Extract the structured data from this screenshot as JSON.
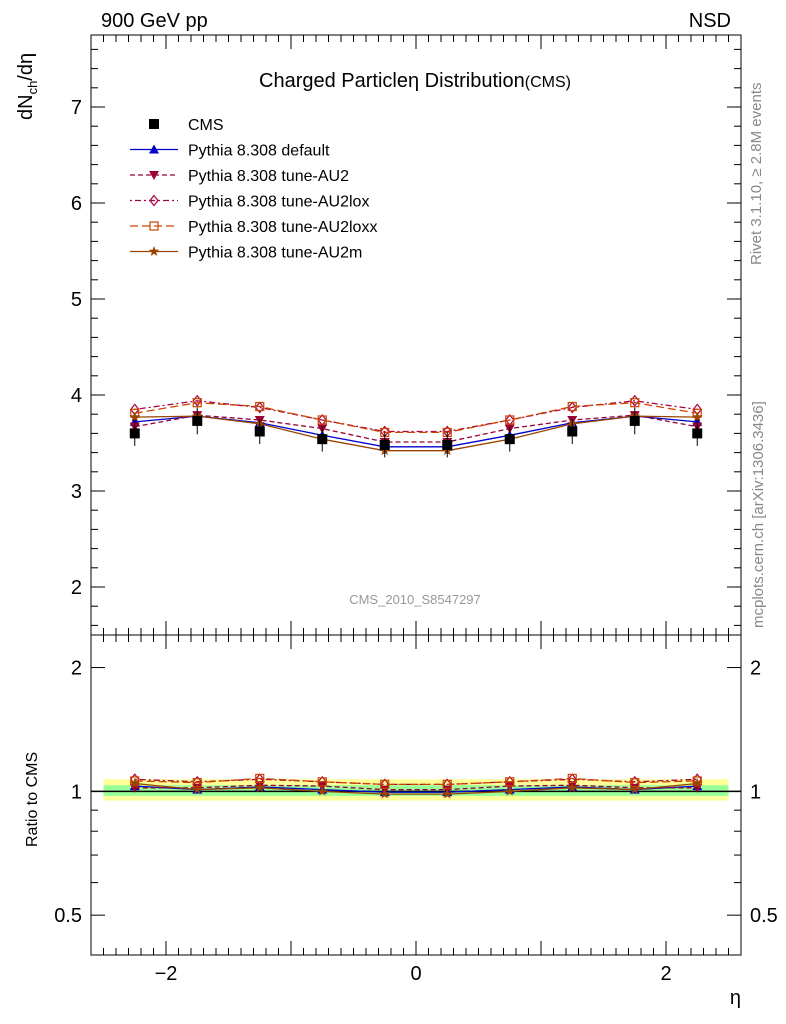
{
  "header": {
    "left": "900 GeV pp",
    "right": "NSD"
  },
  "title": {
    "main": "Charged Particle",
    "greek": "η",
    "rest": " Distribution",
    "suffix": "(CMS)"
  },
  "ylabel_top": "dN_ch/dη",
  "ylabel_bottom": "Ratio to CMS",
  "xlabel": "η",
  "side_text_top": "Rivet 3.1.10, ≥ 2.8M events",
  "side_text_bottom": "mcplots.cern.ch [arXiv:1306.3436]",
  "watermark": "CMS_2010_S8547297",
  "chart_data": {
    "type": "line",
    "x": [
      -2.25,
      -1.75,
      -1.25,
      -0.75,
      -0.25,
      0.25,
      0.75,
      1.25,
      1.75,
      2.25
    ],
    "xlim": [
      -2.6,
      2.6
    ],
    "xticks": [
      -2,
      0,
      2
    ],
    "xtick_labels": [
      "−2",
      "0",
      "2"
    ],
    "main_panel": {
      "ylim": [
        1.5,
        7.75
      ],
      "yticks": [
        2,
        3,
        4,
        5,
        6,
        7
      ],
      "ytick_labels": [
        "2",
        "3",
        "4",
        "5",
        "6",
        "7"
      ]
    },
    "ratio_panel": {
      "scale": "log",
      "ylim": [
        0.4,
        2.4
      ],
      "yticks": [
        0.5,
        1,
        2
      ],
      "ytick_labels": [
        "0.5",
        "1",
        "2"
      ],
      "band_yellow": [
        0.95,
        1.07
      ],
      "band_green": [
        0.975,
        1.035
      ]
    },
    "series": [
      {
        "name": "CMS",
        "color": "#000000",
        "marker": "square",
        "dash": "",
        "values": [
          3.6,
          3.73,
          3.62,
          3.54,
          3.48,
          3.48,
          3.54,
          3.62,
          3.73,
          3.6
        ],
        "errors": [
          0.13,
          0.14,
          0.13,
          0.13,
          0.13,
          0.13,
          0.13,
          0.13,
          0.14,
          0.13
        ]
      },
      {
        "name": "Pythia 8.308 default",
        "color": "#0000cc",
        "marker": "triangle-up",
        "dash": "",
        "values": [
          3.72,
          3.78,
          3.71,
          3.58,
          3.46,
          3.46,
          3.58,
          3.71,
          3.78,
          3.72
        ],
        "ratio": [
          1.03,
          1.01,
          1.025,
          1.01,
          0.995,
          0.995,
          1.01,
          1.025,
          1.01,
          1.03
        ]
      },
      {
        "name": "Pythia 8.308 tune-AU2",
        "color": "#990033",
        "marker": "triangle-down",
        "dash": "5,3",
        "values": [
          3.67,
          3.79,
          3.74,
          3.65,
          3.51,
          3.51,
          3.65,
          3.74,
          3.79,
          3.67
        ],
        "ratio": [
          1.02,
          1.02,
          1.035,
          1.03,
          1.01,
          1.01,
          1.03,
          1.035,
          1.02,
          1.02
        ]
      },
      {
        "name": "Pythia 8.308 tune-AU2lox",
        "color": "#aa0044",
        "marker": "diamond-open",
        "dash": "2,3,6,3",
        "values": [
          3.85,
          3.94,
          3.87,
          3.74,
          3.62,
          3.62,
          3.74,
          3.87,
          3.94,
          3.85
        ],
        "ratio": [
          1.07,
          1.055,
          1.07,
          1.055,
          1.04,
          1.04,
          1.055,
          1.07,
          1.055,
          1.07
        ]
      },
      {
        "name": "Pythia 8.308 tune-AU2loxx",
        "color": "#cc4400",
        "marker": "square-open",
        "dash": "8,4",
        "values": [
          3.81,
          3.92,
          3.88,
          3.74,
          3.61,
          3.61,
          3.74,
          3.88,
          3.92,
          3.81
        ],
        "ratio": [
          1.06,
          1.05,
          1.075,
          1.055,
          1.04,
          1.04,
          1.055,
          1.075,
          1.05,
          1.06
        ]
      },
      {
        "name": "Pythia 8.308 tune-AU2m",
        "color": "#994400",
        "marker": "star",
        "dash": "",
        "values": [
          3.77,
          3.78,
          3.7,
          3.54,
          3.42,
          3.42,
          3.54,
          3.7,
          3.78,
          3.77
        ],
        "ratio": [
          1.045,
          1.01,
          1.02,
          1.0,
          0.985,
          0.985,
          1.0,
          1.02,
          1.01,
          1.045
        ]
      }
    ]
  }
}
